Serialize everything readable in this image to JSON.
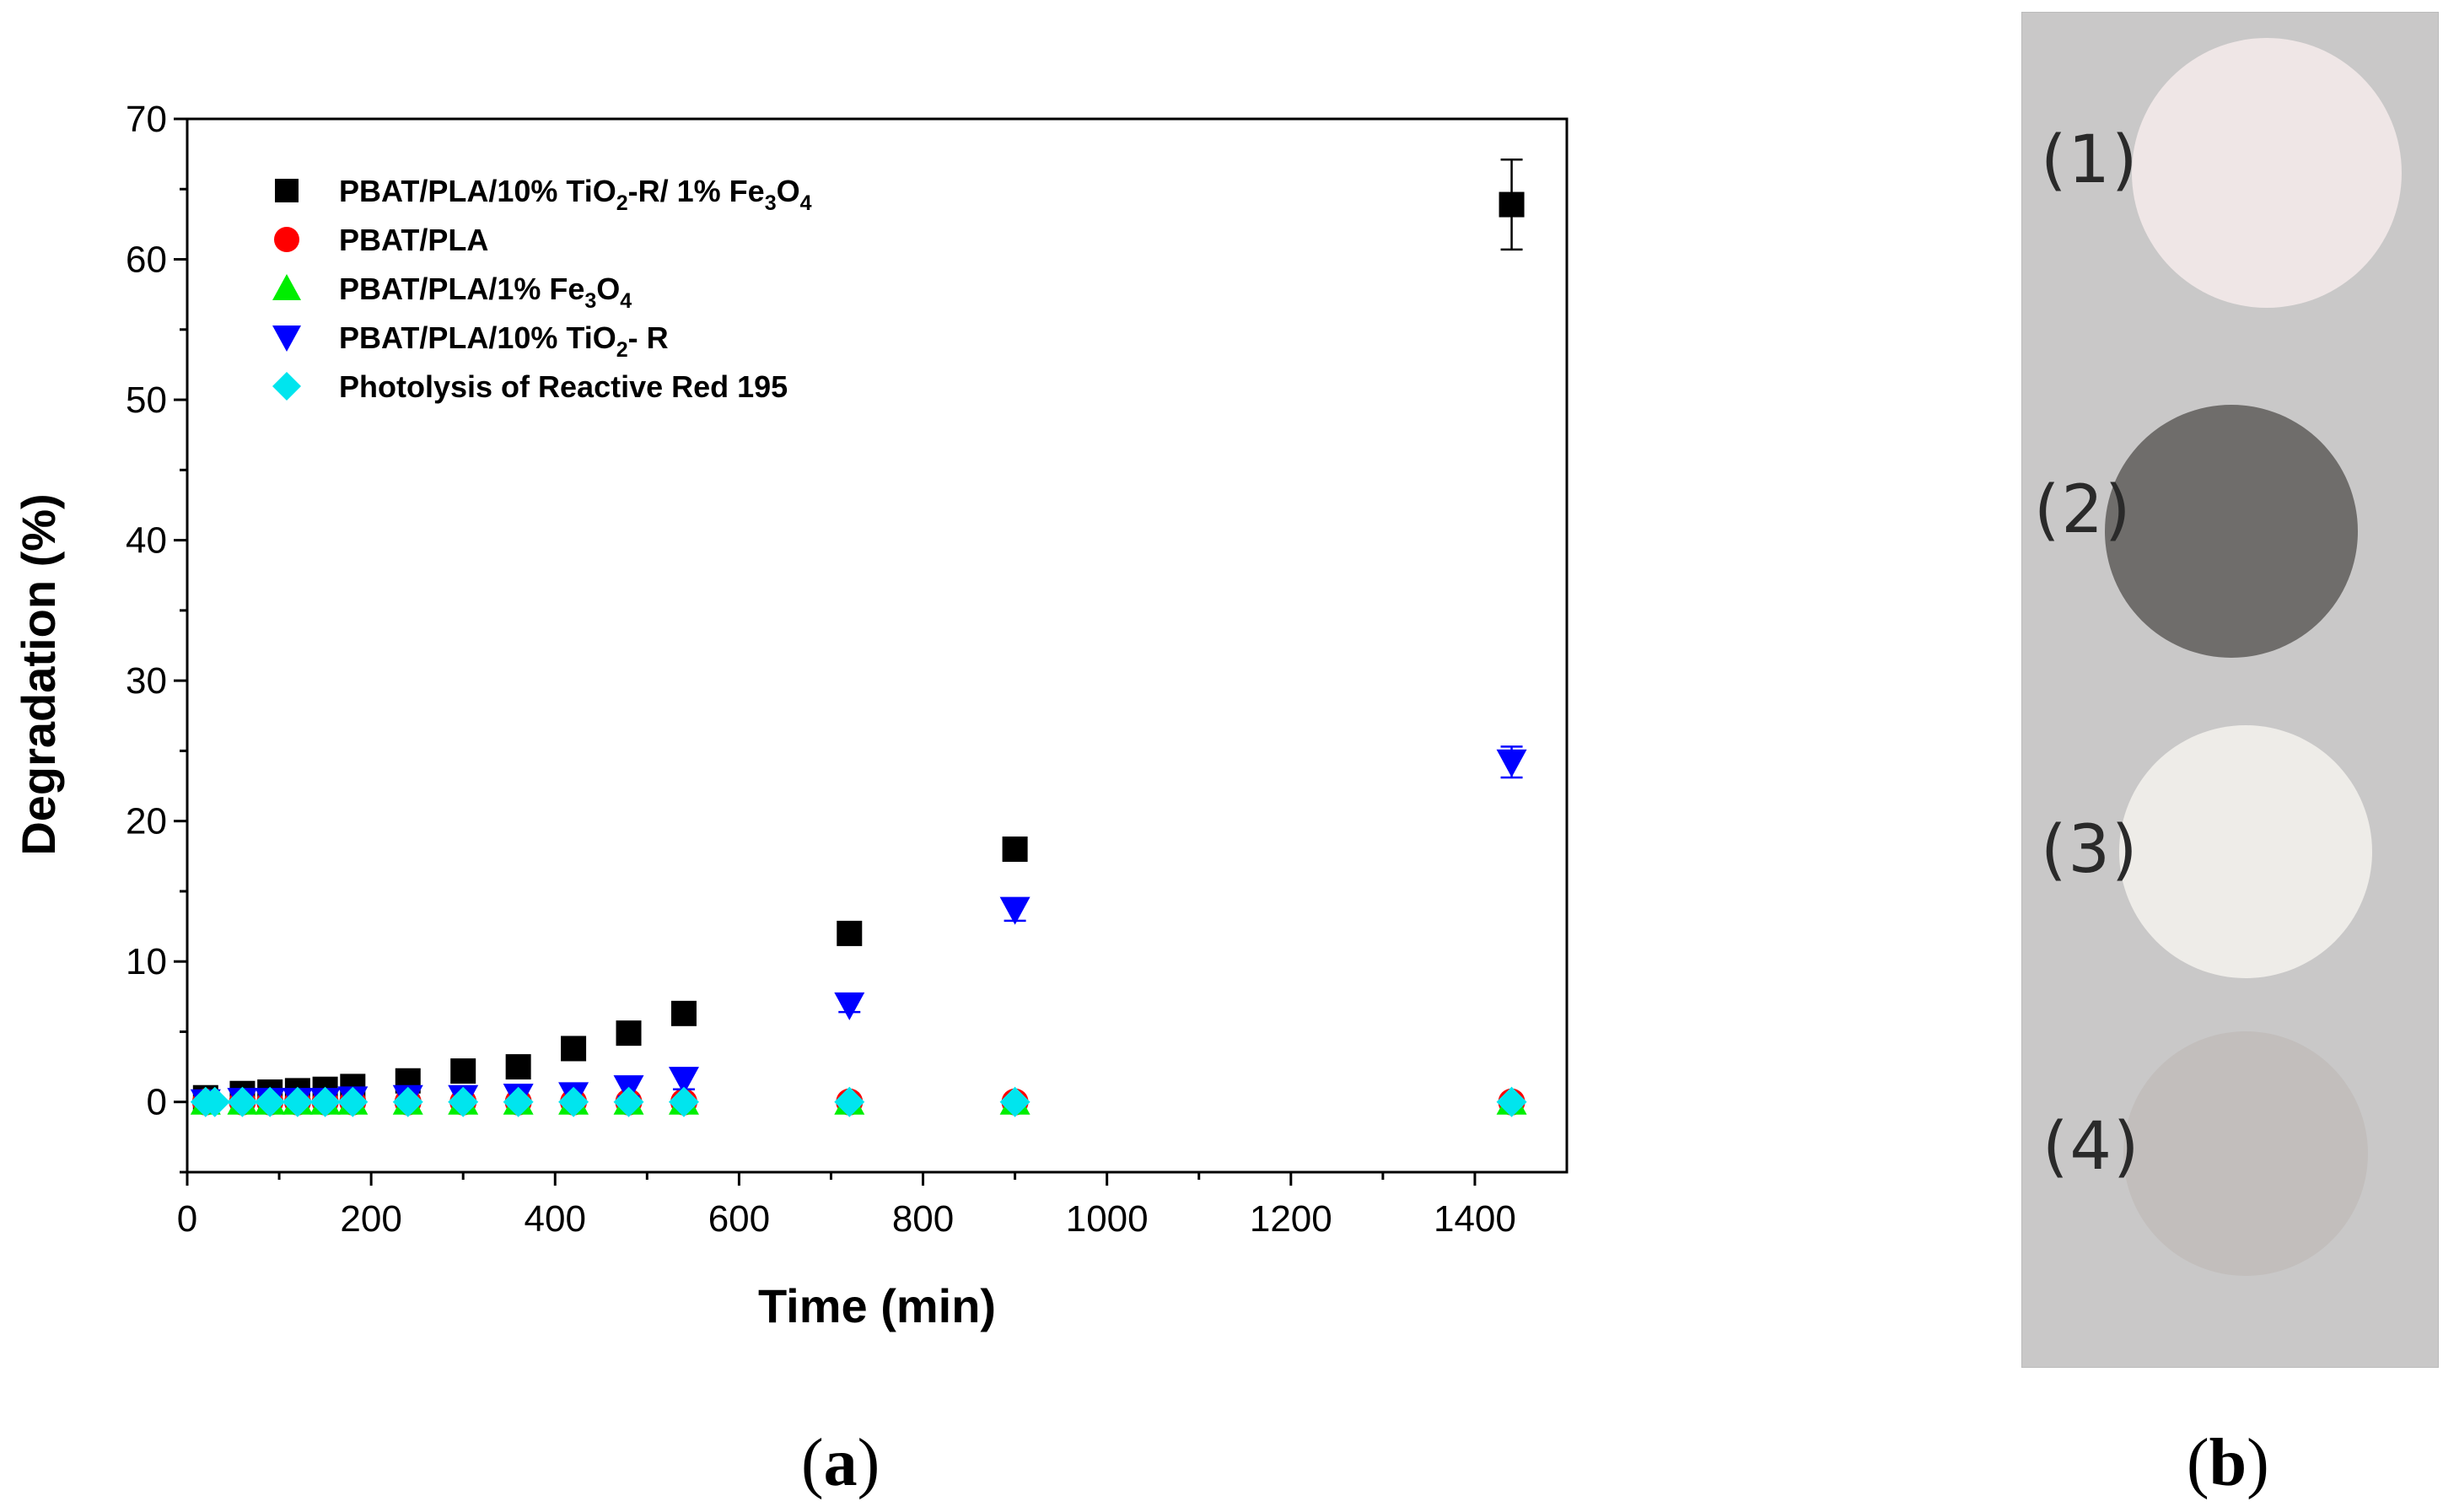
{
  "chart_data": {
    "type": "scatter",
    "xlabel": "Time (min)",
    "ylabel": "Degradation  (%)",
    "xlim": [
      0,
      1500
    ],
    "ylim": [
      -5,
      70
    ],
    "xticks": [
      0,
      200,
      400,
      600,
      800,
      1000,
      1200,
      1400
    ],
    "yticks": [
      0,
      10,
      20,
      30,
      40,
      50,
      60,
      70
    ],
    "colors": {
      "black": "#000000",
      "red": "#ff0000",
      "green": "#00ee00",
      "blue": "#0000ff",
      "cyan": "#00e5ee"
    },
    "series": [
      {
        "name": "PBAT/PLA/10% TiO2-R/ 1% Fe3O4",
        "marker": "square",
        "color": "#000000",
        "x": [
          20,
          60,
          90,
          120,
          150,
          180,
          240,
          300,
          360,
          420,
          480,
          540,
          720,
          900,
          1440
        ],
        "y": [
          0.3,
          0.6,
          0.7,
          0.8,
          0.9,
          1.1,
          1.5,
          2.2,
          2.5,
          3.8,
          4.9,
          6.3,
          12.0,
          18.0,
          63.9
        ],
        "error": [
          0,
          0,
          0,
          0,
          0,
          0,
          0,
          0,
          0,
          0,
          0,
          0,
          0,
          0.4,
          3.2
        ]
      },
      {
        "name": "PBAT/PLA",
        "marker": "circle",
        "color": "#ff0000",
        "x": [
          20,
          60,
          90,
          120,
          150,
          180,
          240,
          300,
          360,
          420,
          480,
          540,
          720,
          900,
          1440
        ],
        "y": [
          0,
          0,
          0,
          0,
          0,
          0,
          0,
          0,
          0,
          0,
          0,
          0,
          0,
          0,
          0
        ],
        "error": [
          0,
          0,
          0,
          0,
          0,
          0,
          0,
          0,
          0,
          0,
          0,
          0,
          0,
          0,
          0
        ]
      },
      {
        "name": "PBAT/PLA/1% Fe3O4",
        "marker": "triangle-up",
        "color": "#00ee00",
        "x": [
          20,
          60,
          90,
          120,
          150,
          180,
          240,
          300,
          360,
          420,
          480,
          540,
          720,
          900,
          1440
        ],
        "y": [
          0,
          0,
          0,
          0,
          0,
          0,
          0,
          0,
          0,
          0,
          0,
          0,
          0,
          0,
          0
        ],
        "error": [
          0,
          0,
          0,
          0,
          0,
          0,
          0,
          0,
          0,
          0,
          0,
          0,
          0,
          0,
          0
        ]
      },
      {
        "name": "PBAT/PLA/10% TiO2- R",
        "marker": "triangle-down",
        "color": "#0000ff",
        "x": [
          20,
          60,
          90,
          120,
          150,
          180,
          240,
          300,
          360,
          420,
          480,
          540,
          720,
          900,
          1440
        ],
        "y": [
          0,
          0.1,
          0.1,
          0.1,
          0.1,
          0.2,
          0.3,
          0.3,
          0.4,
          0.5,
          1.0,
          1.6,
          6.9,
          13.7,
          24.2
        ],
        "error": [
          0,
          0,
          0,
          0,
          0,
          0,
          0,
          0,
          0.6,
          0.6,
          0.6,
          0.7,
          0.5,
          0.8,
          1.1
        ]
      },
      {
        "name": "Photolysis of Reactive Red 195",
        "marker": "diamond",
        "color": "#00e5ee",
        "x": [
          20,
          30,
          60,
          90,
          120,
          150,
          180,
          240,
          300,
          360,
          420,
          480,
          540,
          720,
          900,
          1440
        ],
        "y": [
          0,
          0,
          0,
          0,
          0,
          0,
          0,
          0,
          0,
          0,
          0,
          0,
          0,
          0,
          0,
          0
        ],
        "error": [
          0,
          0,
          0,
          0,
          0,
          0,
          0,
          0,
          0,
          0,
          0,
          0,
          0,
          0,
          0,
          0
        ]
      }
    ],
    "legend": [
      {
        "base": "PBAT/PLA/10% TiO",
        "parts": [
          [
            "2",
            "sub"
          ],
          [
            "-R/ 1% Fe",
            ""
          ],
          [
            "3",
            "sub"
          ],
          [
            "O",
            ""
          ],
          [
            "4",
            "sub"
          ]
        ]
      },
      {
        "base": "PBAT/PLA",
        "parts": []
      },
      {
        "base": "PBAT/PLA/1% Fe",
        "parts": [
          [
            "3",
            "sub"
          ],
          [
            "O",
            ""
          ],
          [
            "4",
            "sub"
          ]
        ]
      },
      {
        "base": "PBAT/PLA/10% TiO",
        "parts": [
          [
            "2",
            "sub"
          ],
          [
            "- R",
            ""
          ]
        ]
      },
      {
        "base": "Photolysis of Reactive Red 195",
        "parts": []
      }
    ]
  },
  "panel_b": {
    "labels": [
      "(1)",
      "(2)",
      "(3)",
      "(4)"
    ],
    "disc_colors": [
      "#efe6e6",
      "#6f6d6b",
      "#eeece8",
      "#c2bebc"
    ],
    "background": "#c9c8c8"
  },
  "captions": {
    "a": "(a)",
    "b": "(b)"
  }
}
